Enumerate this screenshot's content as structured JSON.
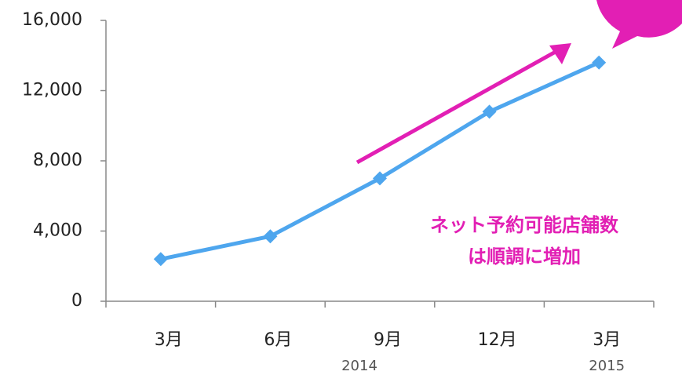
{
  "chart_data": {
    "type": "line",
    "categories": [
      "3月",
      "6月",
      "9月",
      "12月",
      "3月"
    ],
    "year_labels": [
      null,
      null,
      "2014",
      null,
      "2015"
    ],
    "series": [
      {
        "name": null,
        "color": "#4ea6ee",
        "values": [
          2400,
          3700,
          7000,
          10800,
          13600
        ]
      }
    ],
    "ylim": [
      0,
      16000
    ],
    "yticks": [
      0,
      {
        "value": 4000,
        "label": "4,000"
      },
      {
        "value": 8000,
        "label": "8,000"
      },
      {
        "value": 12000,
        "label": "12,000"
      },
      {
        "value": 16000,
        "label": "16,000"
      }
    ],
    "annotation": [
      "ネット予約可能店舗数",
      "は順調に増加"
    ],
    "annotation_color": "#e21fb4"
  }
}
